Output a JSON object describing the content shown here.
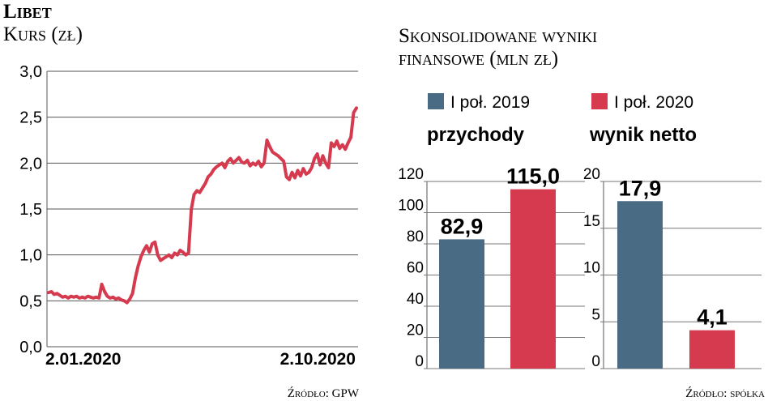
{
  "left": {
    "company": "Libet",
    "subtitle": "Kurs (zł)",
    "source": "Źródło: GPW",
    "chart_data": {
      "type": "line",
      "title": "Libet",
      "ylabel": "Kurs (zł)",
      "ylim": [
        0,
        3.0
      ],
      "yticks": [
        "3,0",
        "2,5",
        "2,0",
        "1,5",
        "1,0",
        "0,5",
        "0,0"
      ],
      "ytick_values": [
        3.0,
        2.5,
        2.0,
        1.5,
        1.0,
        0.5,
        0.0
      ],
      "x_labels": [
        "2.01.2020",
        "2.10.2020"
      ],
      "grid": true,
      "color": "#d63a4f",
      "series": [
        {
          "values": [
            0.59,
            0.6,
            0.57,
            0.58,
            0.56,
            0.54,
            0.55,
            0.53,
            0.55,
            0.54,
            0.55,
            0.53,
            0.54,
            0.53,
            0.55,
            0.54,
            0.53,
            0.54,
            0.53,
            0.68,
            0.6,
            0.55,
            0.53,
            0.54,
            0.52,
            0.53,
            0.51,
            0.5,
            0.48,
            0.52,
            0.58,
            0.75,
            0.88,
            0.98,
            1.05,
            1.1,
            1.03,
            1.12,
            1.14,
            1.0,
            0.94,
            0.96,
            0.98,
            1.0,
            0.97,
            1.02,
            1.0,
            1.05,
            1.03,
            1.0,
            1.02,
            1.5,
            1.66,
            1.7,
            1.68,
            1.73,
            1.78,
            1.85,
            1.88,
            1.93,
            1.96,
            1.98,
            2.0,
            1.95,
            2.02,
            2.05,
            2.0,
            2.03,
            2.06,
            2.01,
            2.0,
            2.03,
            1.97,
            2.0,
            1.98,
            2.02,
            1.96,
            2.0,
            2.25,
            2.18,
            2.12,
            2.1,
            2.08,
            2.05,
            2.02,
            1.85,
            1.82,
            1.9,
            1.84,
            1.92,
            1.86,
            1.94,
            1.88,
            1.9,
            1.95,
            2.05,
            2.1,
            1.98,
            2.08,
            2.0,
            1.95,
            2.22,
            2.18,
            2.24,
            2.16,
            2.2,
            2.15,
            2.22,
            2.28,
            2.55,
            2.6
          ]
        }
      ]
    }
  },
  "right": {
    "title_line1": "Skonsolidowane wyniki",
    "title_line2": "finansowe (mln zł)",
    "source": "Źródło: spółka",
    "legend": [
      {
        "label": "I poł. 2019",
        "color": "#4a6b84"
      },
      {
        "label": "I poł. 2020",
        "color": "#d63a4f"
      }
    ],
    "chart_data": [
      {
        "type": "bar",
        "title": "przychody",
        "ylim": [
          0,
          120
        ],
        "yticks": [
          0,
          20,
          40,
          60,
          80,
          100,
          120
        ],
        "series": [
          {
            "name": "I poł. 2019",
            "value": 82.9,
            "label": "82,9",
            "color": "#4a6b84"
          },
          {
            "name": "I poł. 2020",
            "value": 115.0,
            "label": "115,0",
            "color": "#d63a4f"
          }
        ]
      },
      {
        "type": "bar",
        "title": "wynik netto",
        "ylim": [
          0,
          20
        ],
        "yticks": [
          0,
          5,
          10,
          15,
          20
        ],
        "series": [
          {
            "name": "I poł. 2019",
            "value": 17.9,
            "label": "17,9",
            "color": "#4a6b84"
          },
          {
            "name": "I poł. 2020",
            "value": 4.1,
            "label": "4,1",
            "color": "#d63a4f"
          }
        ]
      }
    ]
  }
}
